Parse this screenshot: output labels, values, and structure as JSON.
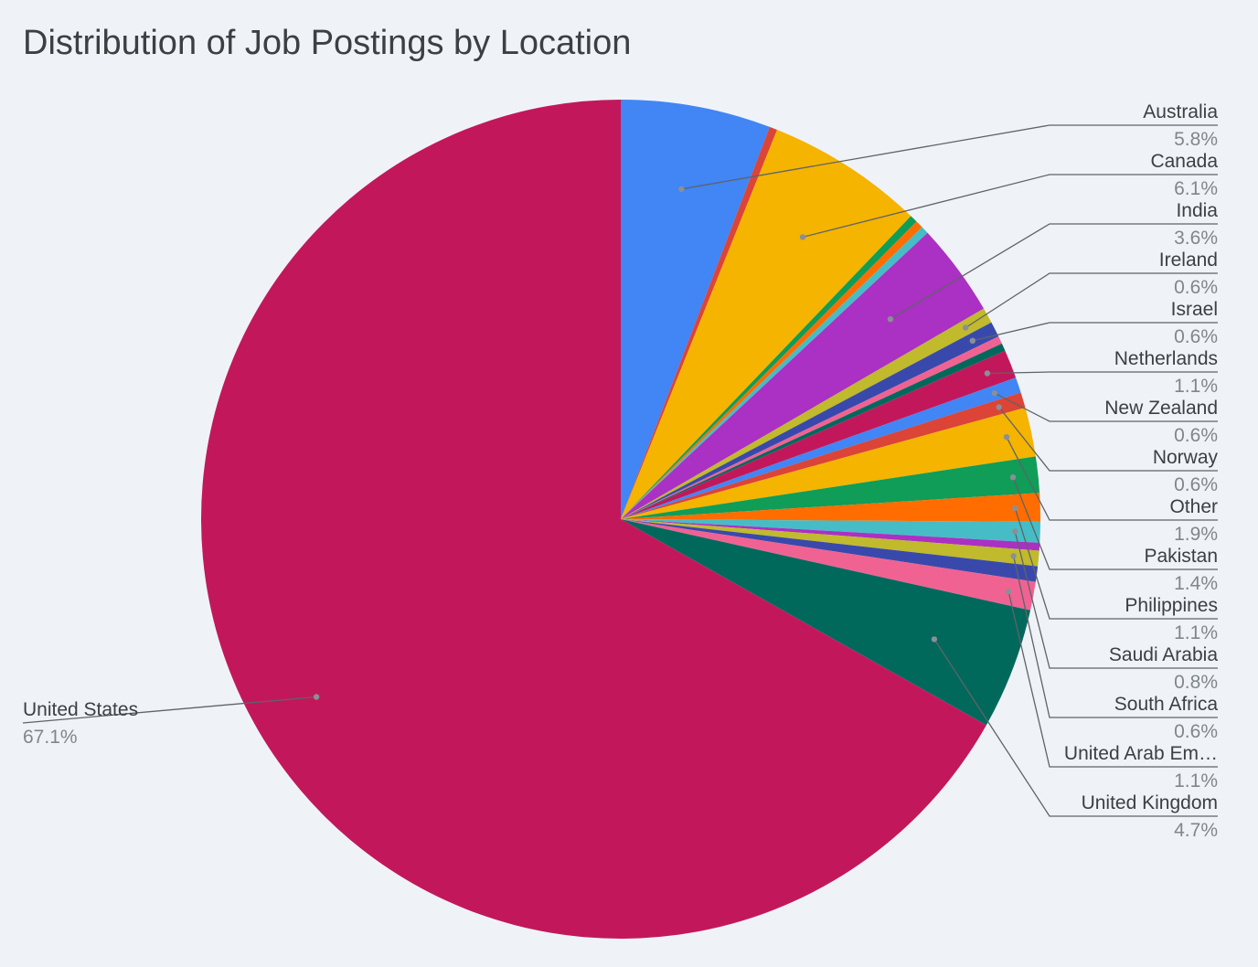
{
  "chart_data": {
    "type": "pie",
    "title": "Distribution of Job Postings by Location",
    "legend": "labels-with-leader-lines",
    "slices": [
      {
        "label": "Australia",
        "value": 5.8,
        "display": "5.8%",
        "color": "#4285f4"
      },
      {
        "label": "",
        "value": 0.3,
        "display": "",
        "color": "#db4437"
      },
      {
        "label": "Canada",
        "value": 6.1,
        "display": "6.1%",
        "color": "#f4b400"
      },
      {
        "label": "",
        "value": 0.3,
        "display": "",
        "color": "#0f9d58"
      },
      {
        "label": "",
        "value": 0.3,
        "display": "",
        "color": "#ff6d00"
      },
      {
        "label": "",
        "value": 0.3,
        "display": "",
        "color": "#46bdc6"
      },
      {
        "label": "India",
        "value": 3.6,
        "display": "3.6%",
        "color": "#ab30c4"
      },
      {
        "label": "Ireland",
        "value": 0.6,
        "display": "0.6%",
        "color": "#c0ba2c"
      },
      {
        "label": "Israel",
        "value": 0.6,
        "display": "0.6%",
        "color": "#3949ab"
      },
      {
        "label": "",
        "value": 0.3,
        "display": "",
        "color": "#f06292"
      },
      {
        "label": "",
        "value": 0.3,
        "display": "",
        "color": "#00695c"
      },
      {
        "label": "Netherlands",
        "value": 1.1,
        "display": "1.1%",
        "color": "#c2185b"
      },
      {
        "label": "New Zealand",
        "value": 0.6,
        "display": "0.6%",
        "color": "#4285f4"
      },
      {
        "label": "Norway",
        "value": 0.6,
        "display": "0.6%",
        "color": "#db4437"
      },
      {
        "label": "Other",
        "value": 1.9,
        "display": "1.9%",
        "color": "#f4b400"
      },
      {
        "label": "Pakistan",
        "value": 1.4,
        "display": "1.4%",
        "color": "#0f9d58"
      },
      {
        "label": "Philippines",
        "value": 1.1,
        "display": "1.1%",
        "color": "#ff6d00"
      },
      {
        "label": "Saudi Arabia",
        "value": 0.8,
        "display": "0.8%",
        "color": "#46bdc6"
      },
      {
        "label": "",
        "value": 0.3,
        "display": "",
        "color": "#ab30c4"
      },
      {
        "label": "South Africa",
        "value": 0.6,
        "display": "0.6%",
        "color": "#c0ba2c"
      },
      {
        "label": "",
        "value": 0.6,
        "display": "",
        "color": "#3949ab"
      },
      {
        "label": "United Arab Em…",
        "value": 1.1,
        "display": "1.1%",
        "color": "#f06292"
      },
      {
        "label": "United Kingdom",
        "value": 4.7,
        "display": "4.7%",
        "color": "#00695c"
      },
      {
        "label": "United States",
        "value": 67.1,
        "display": "67.1%",
        "color": "#c2185b"
      }
    ]
  }
}
